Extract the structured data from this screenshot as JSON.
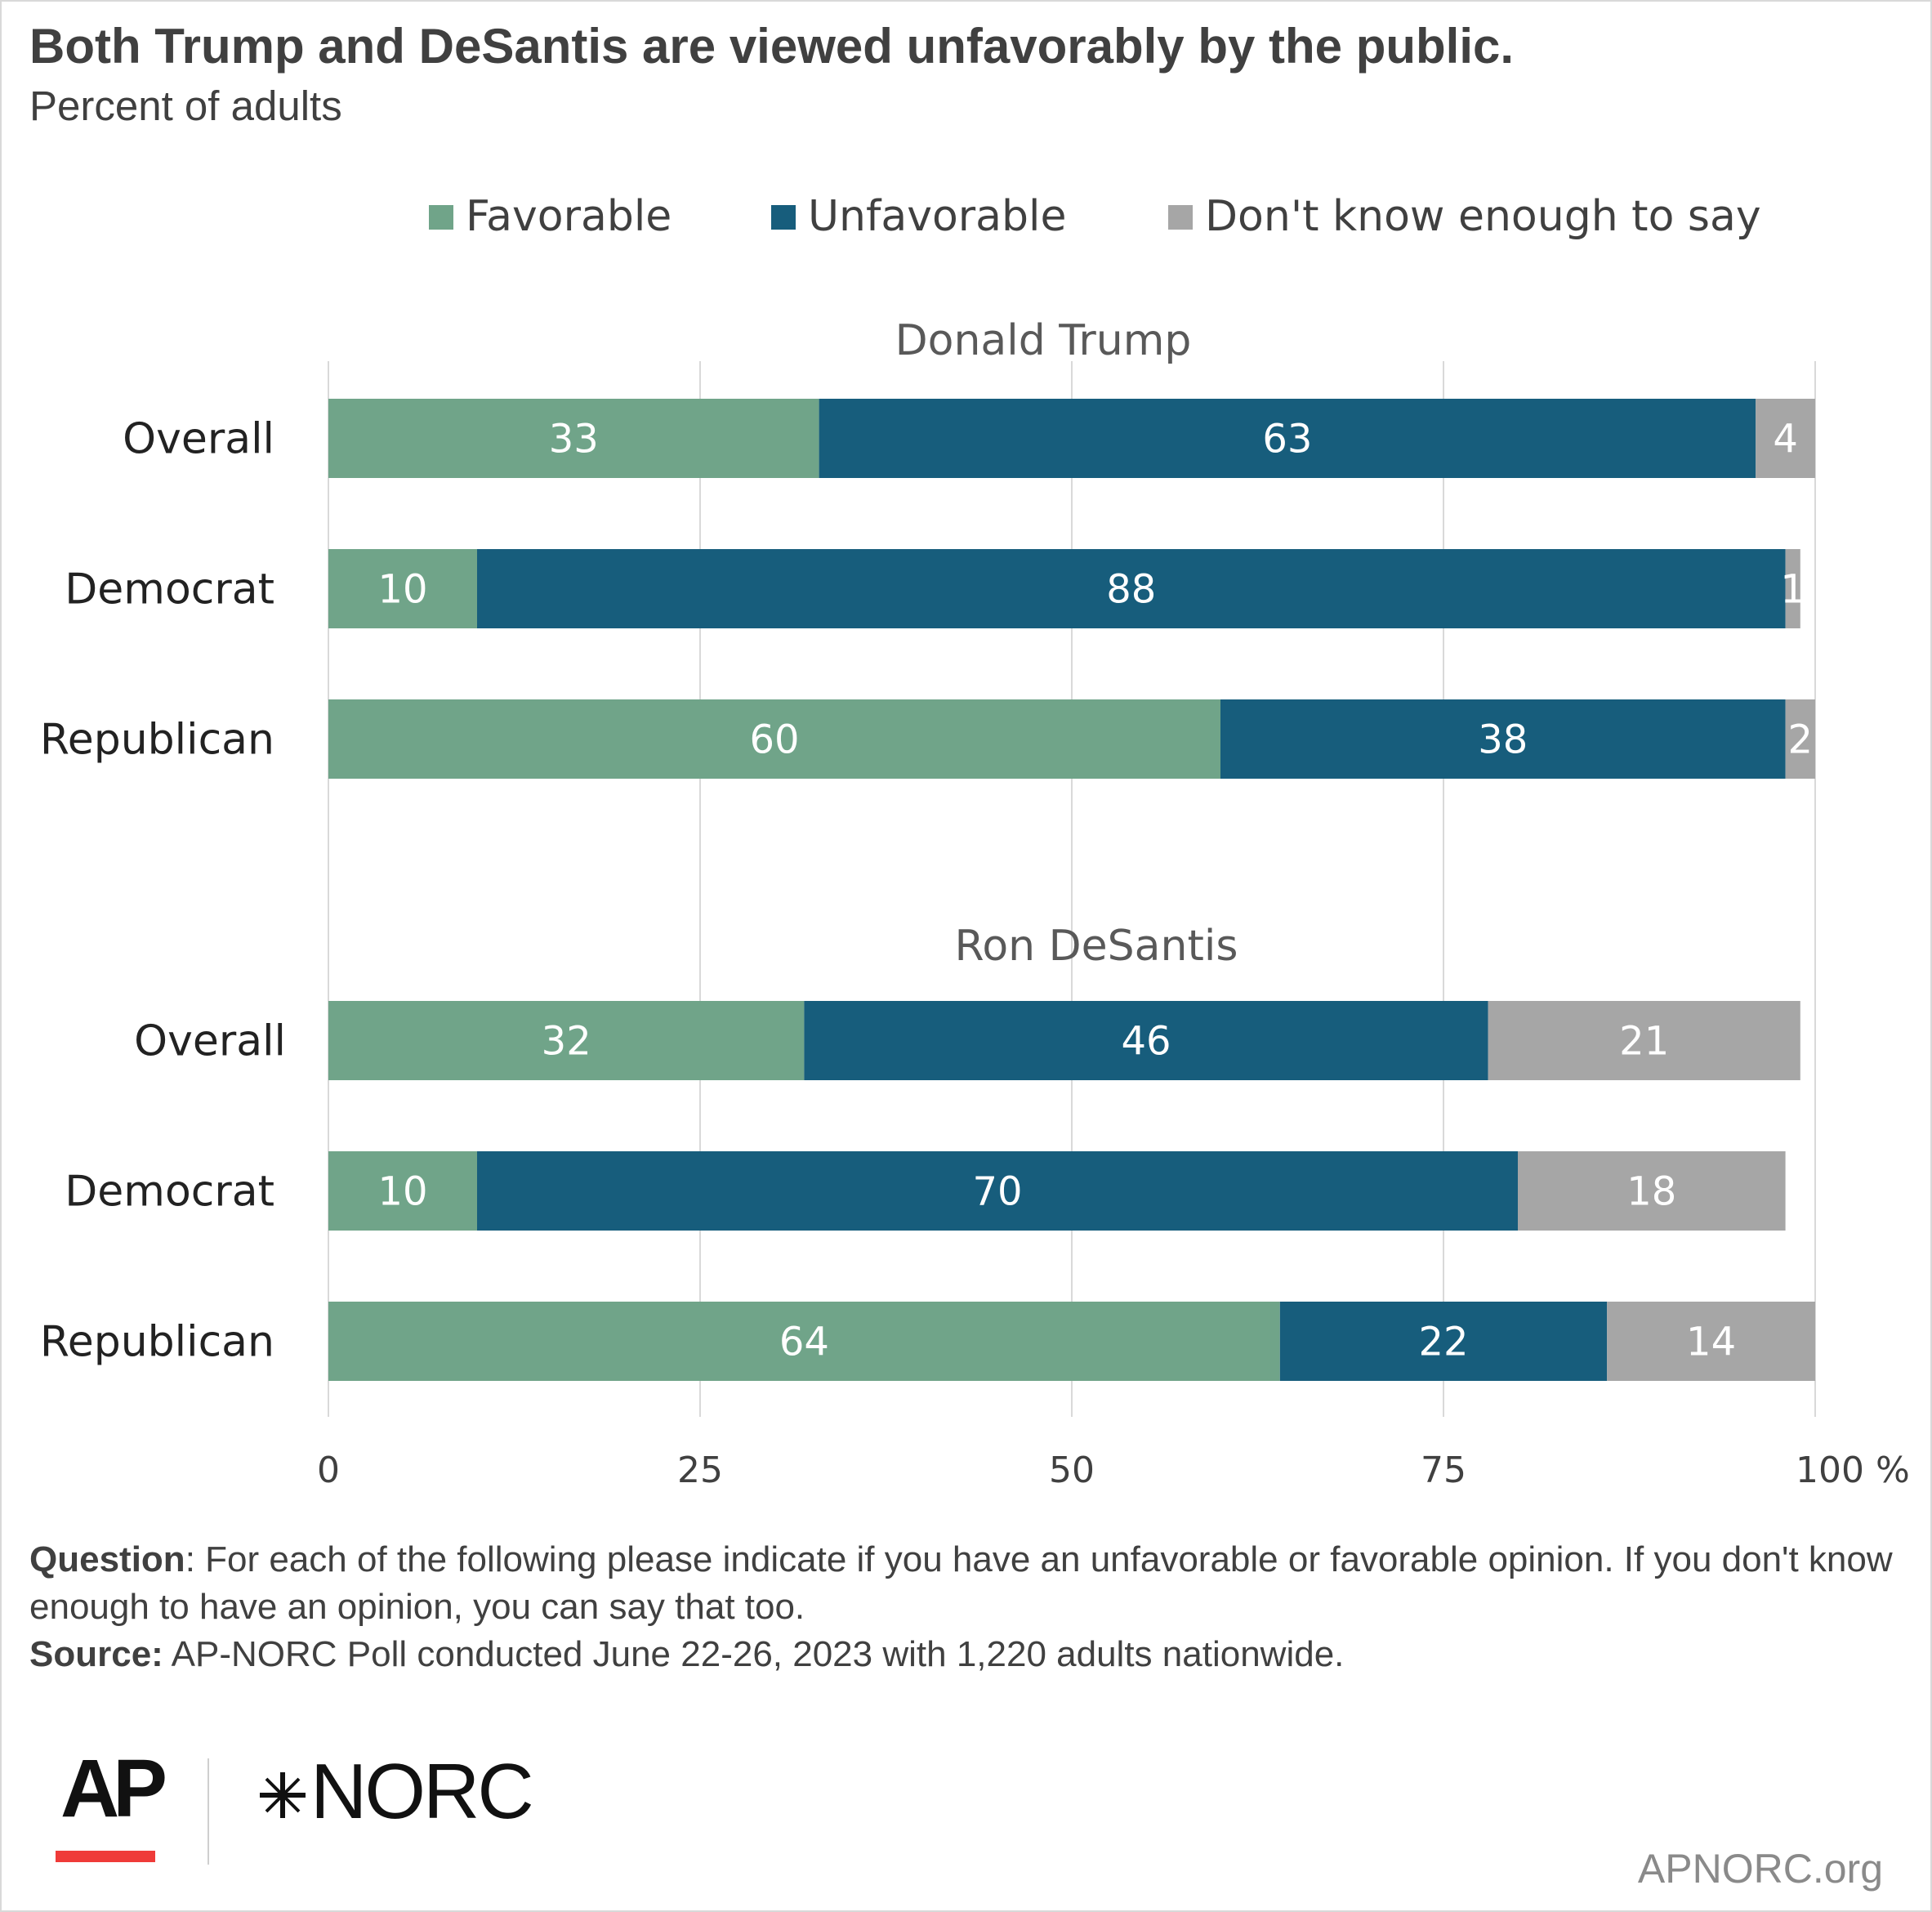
{
  "title": "Both Trump and DeSantis are viewed unfavorably by the public.",
  "subtitle": "Percent of adults",
  "legend": [
    "Favorable",
    "Unfavorable",
    "Don't know enough to say"
  ],
  "colors": {
    "favorable": "#70a489",
    "unfavorable": "#175d7c",
    "dontknow": "#a6a6a6",
    "grid": "#d9d9d9",
    "text": "#404040"
  },
  "chart_data": {
    "type": "bar",
    "orientation": "horizontal",
    "stacked": true,
    "xlim": [
      0,
      100
    ],
    "x_ticks": [
      "0",
      "25",
      "50",
      "75",
      "100 %"
    ],
    "grid": true,
    "legend_position": "top",
    "panels": [
      {
        "title": "Donald Trump",
        "categories": [
          "Overall",
          "Democrat",
          "Republican"
        ],
        "series": [
          {
            "name": "Favorable",
            "values": [
              33,
              10,
              60
            ]
          },
          {
            "name": "Unfavorable",
            "values": [
              63,
              88,
              38
            ]
          },
          {
            "name": "Don't know enough to say",
            "values": [
              4,
              1,
              2
            ]
          }
        ]
      },
      {
        "title": "Ron DeSantis",
        "categories": [
          "Overall",
          "Democrat",
          "Republican"
        ],
        "series": [
          {
            "name": "Favorable",
            "values": [
              32,
              10,
              64
            ]
          },
          {
            "name": "Unfavorable",
            "values": [
              46,
              70,
              22
            ]
          },
          {
            "name": "Don't know enough to say",
            "values": [
              21,
              18,
              14
            ]
          }
        ]
      }
    ]
  },
  "notes": {
    "question_label": "Question",
    "question_text": ": For each of the following please indicate if you have an unfavorable or favorable opinion. If you don't know enough to have an opinion, you can say that too.",
    "source_label": "Source:",
    "source_text": " AP-NORC Poll conducted June 22-26, 2023 with 1,220 adults nationwide."
  },
  "branding": {
    "ap": "AP",
    "norc": "NORC",
    "site": "APNORC.org"
  }
}
